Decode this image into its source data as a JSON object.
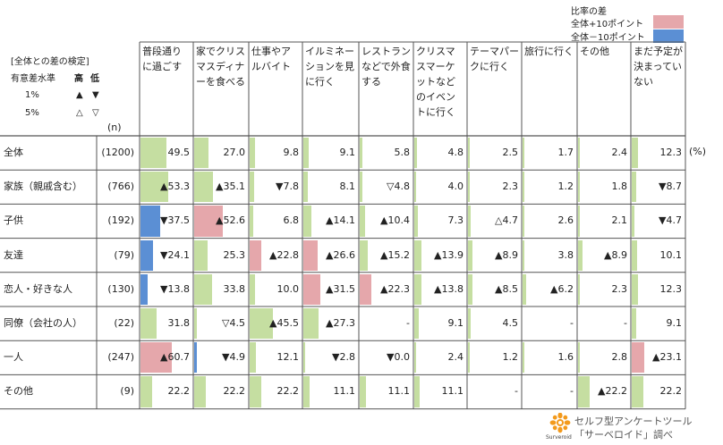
{
  "legend": {
    "title": "比率の差",
    "plus_label": "全体+10ポイント",
    "minus_label": "全体－10ポイント",
    "plus_color": "#e5a7ab",
    "minus_color": "#5b8fd4"
  },
  "significance": {
    "title": "[全体との差の検定]",
    "level_label": "有意差水準",
    "high": "高",
    "low": "低",
    "p1": "1%",
    "p5": "5%",
    "p1_high": "▲",
    "p1_low": "▼",
    "p5_high": "△",
    "p5_low": "▽"
  },
  "n_header": "(n)",
  "unit": "(%)",
  "bar_color": "#c5dea1",
  "footer": {
    "logo": "Surveroid",
    "line1": "セルフ型アンケートツール",
    "line2": "「サーベロイド」調べ"
  },
  "chart_data": {
    "type": "table",
    "columns": [
      "普段通りに過ごす",
      "家でクリスマスディナーを食べる",
      "仕事やアルバイト",
      "イルミネーションを見に行く",
      "レストランなどで外食する",
      "クリスマスマーケットなどのイベントに行く",
      "テーマパークに行く",
      "旅行に行く",
      "その他",
      "まだ予定が決まっていない"
    ],
    "rows": [
      {
        "label": "全体",
        "n": "(1200)",
        "values": [
          49.5,
          27.0,
          9.8,
          9.1,
          5.8,
          4.8,
          2.5,
          1.7,
          2.4,
          12.3
        ],
        "display": [
          "49.5",
          "27.0",
          "9.8",
          "9.1",
          "5.8",
          "4.8",
          "2.5",
          "1.7",
          "2.4",
          "12.3"
        ],
        "hl": [
          "",
          "",
          "",
          "",
          "",
          "",
          "",
          "",
          "",
          ""
        ]
      },
      {
        "label": "家族（親戚含む）",
        "n": "(766)",
        "values": [
          53.3,
          35.1,
          7.8,
          8.1,
          4.8,
          4.0,
          2.3,
          1.2,
          1.8,
          8.7
        ],
        "display": [
          "▲53.3",
          "▲35.1",
          "▼7.8",
          "8.1",
          "▽4.8",
          "4.0",
          "2.3",
          "1.2",
          "1.8",
          "▼8.7"
        ],
        "hl": [
          "",
          "",
          "",
          "",
          "",
          "",
          "",
          "",
          "",
          ""
        ]
      },
      {
        "label": "子供",
        "n": "(192)",
        "values": [
          37.5,
          52.6,
          6.8,
          14.1,
          10.4,
          7.3,
          4.7,
          2.6,
          2.1,
          4.7
        ],
        "display": [
          "▼37.5",
          "▲52.6",
          "6.8",
          "▲14.1",
          "▲10.4",
          "7.3",
          "△4.7",
          "2.6",
          "2.1",
          "▼4.7"
        ],
        "hl": [
          "minus",
          "plus",
          "",
          "",
          "",
          "",
          "",
          "",
          "",
          ""
        ]
      },
      {
        "label": "友達",
        "n": "(79)",
        "values": [
          24.1,
          25.3,
          22.8,
          26.6,
          15.2,
          13.9,
          8.9,
          3.8,
          8.9,
          10.1
        ],
        "display": [
          "▼24.1",
          "25.3",
          "▲22.8",
          "▲26.6",
          "▲15.2",
          "▲13.9",
          "▲8.9",
          "3.8",
          "▲8.9",
          "10.1"
        ],
        "hl": [
          "minus",
          "",
          "plus",
          "plus",
          "",
          "",
          "",
          "",
          "",
          ""
        ]
      },
      {
        "label": "恋人・好きな人",
        "n": "(130)",
        "values": [
          13.8,
          33.8,
          10.0,
          31.5,
          22.3,
          13.8,
          8.5,
          6.2,
          2.3,
          12.3
        ],
        "display": [
          "▼13.8",
          "33.8",
          "10.0",
          "▲31.5",
          "▲22.3",
          "▲13.8",
          "▲8.5",
          "▲6.2",
          "2.3",
          "12.3"
        ],
        "hl": [
          "minus",
          "",
          "",
          "plus",
          "plus",
          "",
          "",
          "",
          "",
          ""
        ]
      },
      {
        "label": "同僚（会社の人）",
        "n": "(22)",
        "values": [
          31.8,
          4.5,
          45.5,
          27.3,
          0,
          9.1,
          4.5,
          0,
          0,
          9.1
        ],
        "display": [
          "31.8",
          "▽4.5",
          "▲45.5",
          "▲27.3",
          "-",
          "9.1",
          "4.5",
          "-",
          "-",
          "9.1"
        ],
        "hl": [
          "",
          "",
          "",
          "",
          "",
          "",
          "",
          "",
          "",
          ""
        ]
      },
      {
        "label": "一人",
        "n": "(247)",
        "values": [
          60.7,
          4.9,
          12.1,
          2.8,
          0.0,
          2.4,
          1.2,
          1.6,
          2.8,
          23.1
        ],
        "display": [
          "▲60.7",
          "▼4.9",
          "12.1",
          "▼2.8",
          "▼0.0",
          "2.4",
          "1.2",
          "1.6",
          "2.8",
          "▲23.1"
        ],
        "hl": [
          "plus",
          "minus",
          "",
          "",
          "",
          "",
          "",
          "",
          "",
          "plus"
        ]
      },
      {
        "label": "その他",
        "n": "(9)",
        "values": [
          22.2,
          22.2,
          22.2,
          11.1,
          11.1,
          11.1,
          0,
          0,
          22.2,
          22.2
        ],
        "display": [
          "22.2",
          "22.2",
          "22.2",
          "11.1",
          "11.1",
          "11.1",
          "-",
          "-",
          "▲22.2",
          "22.2"
        ],
        "hl": [
          "",
          "",
          "",
          "",
          "",
          "",
          "",
          "",
          "",
          ""
        ]
      }
    ]
  }
}
